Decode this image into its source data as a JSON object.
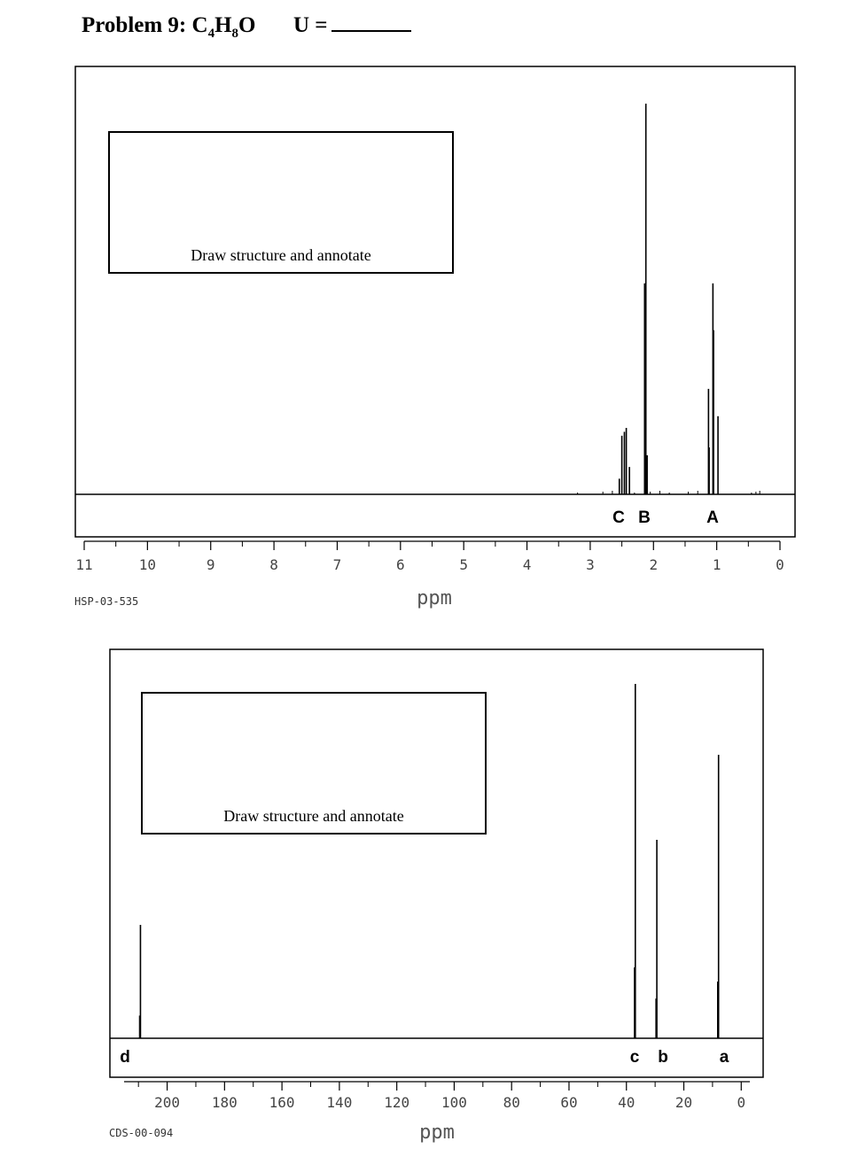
{
  "problem": {
    "label": "Problem 9:",
    "formula_parts": [
      "C",
      "4",
      "H",
      "8",
      "O"
    ],
    "u_label": "U ="
  },
  "chart_data": [
    {
      "type": "line",
      "kind": "1H NMR spectrum",
      "code": "HSP-03-535",
      "xlabel": "ppm",
      "xlim": [
        11,
        0
      ],
      "x_ticks": [
        "11",
        "10",
        "9",
        "8",
        "7",
        "6",
        "5",
        "4",
        "3",
        "2",
        "1",
        "0"
      ],
      "annotation_box": "Draw structure and annotate",
      "peak_labels": [
        {
          "text": "C",
          "ppm": 2.46
        },
        {
          "text": "B",
          "ppm": 2.13
        },
        {
          "text": "A",
          "ppm": 1.05
        }
      ],
      "peaks": [
        {
          "ppm": 2.54,
          "height": 0.04
        },
        {
          "ppm": 2.5,
          "height": 0.15
        },
        {
          "ppm": 2.46,
          "height": 0.16
        },
        {
          "ppm": 2.43,
          "height": 0.17
        },
        {
          "ppm": 2.38,
          "height": 0.07
        },
        {
          "ppm": 2.14,
          "height": 0.54
        },
        {
          "ppm": 2.12,
          "height": 1.0
        },
        {
          "ppm": 2.1,
          "height": 0.1
        },
        {
          "ppm": 1.13,
          "height": 0.27
        },
        {
          "ppm": 1.12,
          "height": 0.12
        },
        {
          "ppm": 1.06,
          "height": 0.54
        },
        {
          "ppm": 1.05,
          "height": 0.42
        },
        {
          "ppm": 0.98,
          "height": 0.2
        }
      ]
    },
    {
      "type": "line",
      "kind": "13C NMR spectrum",
      "code": "CDS-00-094",
      "xlabel": "ppm",
      "xlim": [
        215,
        -3
      ],
      "x_ticks": [
        "200",
        "180",
        "160",
        "140",
        "120",
        "100",
        "80",
        "60",
        "40",
        "20",
        "0"
      ],
      "annotation_box": "Draw structure and annotate",
      "peak_labels": [
        {
          "text": "d",
          "ppm": 209.3
        },
        {
          "text": "c",
          "ppm": 36.9
        },
        {
          "text": "b",
          "ppm": 29.4
        },
        {
          "text": "a",
          "ppm": 7.9
        }
      ],
      "peaks": [
        {
          "ppm": 209.3,
          "height": 0.32
        },
        {
          "ppm": 36.9,
          "height": 1.0
        },
        {
          "ppm": 29.4,
          "height": 0.56
        },
        {
          "ppm": 7.9,
          "height": 0.8
        }
      ]
    }
  ]
}
